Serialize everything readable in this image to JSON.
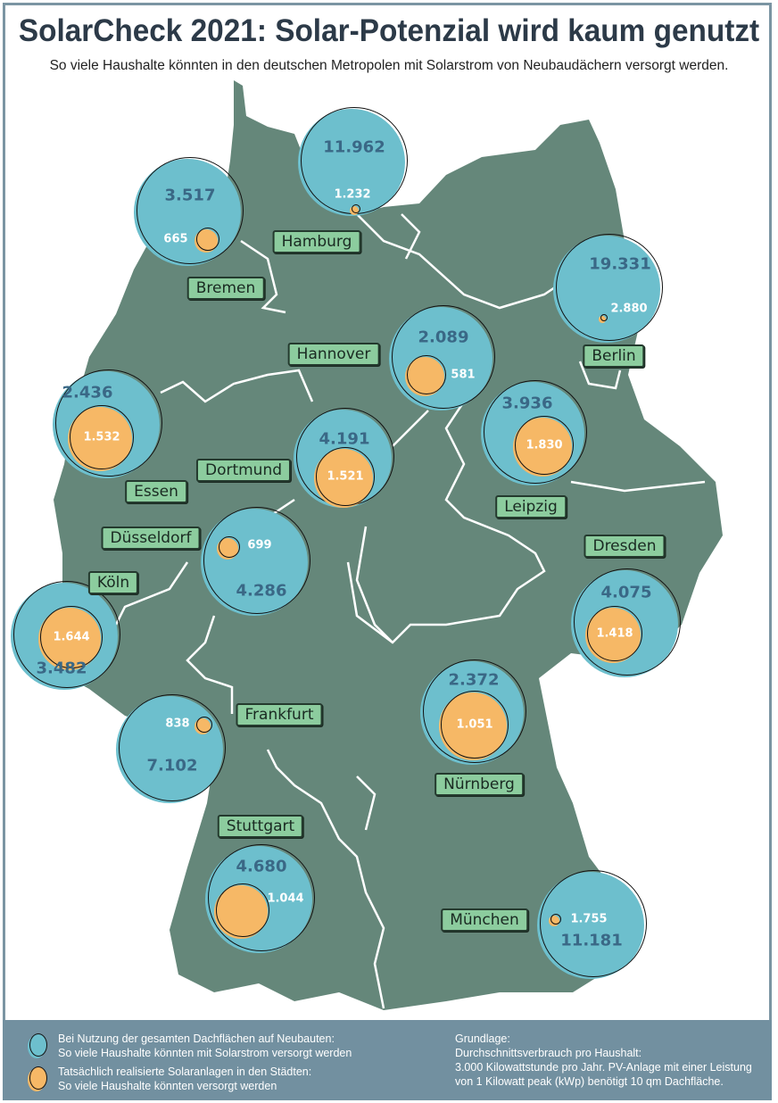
{
  "header": {
    "title": "SolarCheck 2021: Solar-Potenzial wird kaum genutzt",
    "subtitle": "So viele Haushalte könnten in den deutschen Metropolen mit Solarstrom von Neubaudächern versorgt werden."
  },
  "colors": {
    "map_land": "#65877a",
    "potential_circle": "#6dbfcd",
    "realized_circle": "#f6b866",
    "city_label": "#8ccc9e",
    "legend_background": "#7290a0"
  },
  "cities": [
    {
      "id": "hamburg",
      "name": "Hamburg",
      "potential": "11.962",
      "realized": "1.232"
    },
    {
      "id": "bremen",
      "name": "Bremen",
      "potential": "3.517",
      "realized": "665"
    },
    {
      "id": "berlin",
      "name": "Berlin",
      "potential": "19.331",
      "realized": "2.880"
    },
    {
      "id": "hannover",
      "name": "Hannover",
      "potential": "2.089",
      "realized": "581"
    },
    {
      "id": "essen",
      "name": "Essen",
      "potential": "2.436",
      "realized": "1.532"
    },
    {
      "id": "leipzig",
      "name": "Leipzig",
      "potential": "3.936",
      "realized": "1.830"
    },
    {
      "id": "dortmund",
      "name": "Dortmund",
      "potential": "4.191",
      "realized": "1.521"
    },
    {
      "id": "duesseldorf",
      "name": "Düsseldorf",
      "potential": "4.286",
      "realized": "699"
    },
    {
      "id": "koeln",
      "name": "Köln",
      "potential": "3.482",
      "realized": "1.644"
    },
    {
      "id": "dresden",
      "name": "Dresden",
      "potential": "4.075",
      "realized": "1.418"
    },
    {
      "id": "nuernberg",
      "name": "Nürnberg",
      "potential": "2.372",
      "realized": "1.051"
    },
    {
      "id": "frankfurt",
      "name": "Frankfurt",
      "potential": "7.102",
      "realized": "838"
    },
    {
      "id": "stuttgart",
      "name": "Stuttgart",
      "potential": "4.680",
      "realized": "1.044"
    },
    {
      "id": "muenchen",
      "name": "München",
      "potential": "11.181",
      "realized": "1.755"
    }
  ],
  "legend": {
    "potential_line1": "Bei Nutzung der gesamten Dachflächen auf Neubauten:",
    "potential_line2": "So viele Haushalte könnten mit Solarstrom versorgt werden",
    "realized_line1": "Tatsächlich realisierte Solaranlagen in den Städten:",
    "realized_line2": "So viele Haushalte könnten versorgt werden",
    "basis_line1": "Grundlage:",
    "basis_line2": "Durchschnittsverbrauch pro Haushalt:",
    "basis_line3": "3.000 Kilowattstunde pro Jahr. PV-Anlage mit einer Leistung",
    "basis_line4": "von 1 Kilowatt peak (kWp) benötigt 10 qm Dachfläche."
  }
}
